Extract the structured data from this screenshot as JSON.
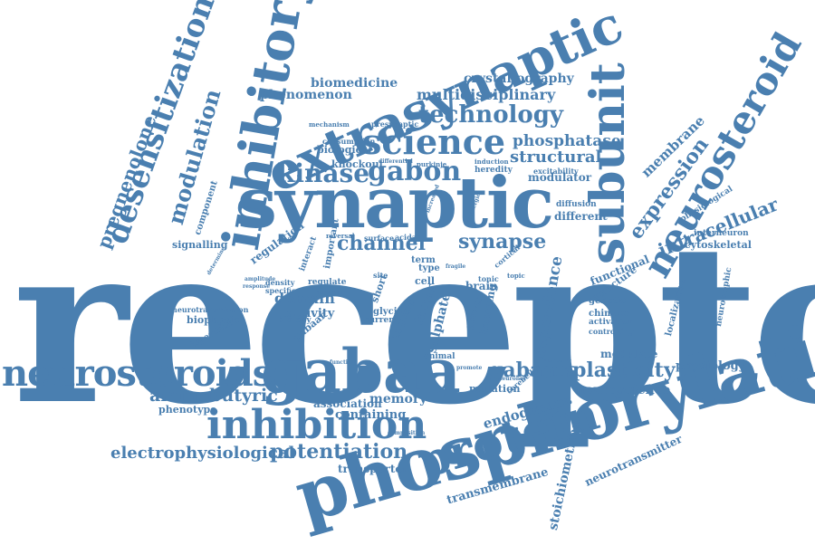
{
  "palette": {
    "word": "#4a7fb0",
    "background": "#ffffff"
  },
  "words": {
    "receptor": "receptor",
    "phosphorylation": "phosphorylation",
    "synaptic": "synaptic",
    "extrasynaptic": "extrasynaptic",
    "inhibitory": "inhibitory",
    "gabaa": "gabaa",
    "neurosteroids": "neurosteroids",
    "inhibition": "inhibition",
    "protein": "protein",
    "subunit": "subunit",
    "neurosteroid": "neurosteroid",
    "desensitization": "desensitization",
    "science": "science",
    "technology": "technology",
    "kinase": "kinase",
    "gabon": "gabon",
    "synapse": "synapse",
    "channel": "channel",
    "structural": "structural",
    "phosphatase": "phosphatase",
    "expression": "expression",
    "intracellular": "intracellular",
    "membrane": "membrane",
    "modulation": "modulation",
    "pregnenolone": "pregnenolone",
    "multidisciplinary": "multidisciplinary",
    "crystallography": "crystallography",
    "phenomenon": "phenomenon",
    "biomedicine": "biomedicine",
    "plasticity": "plasticity",
    "gabaars": "gabaars",
    "aminobutyric": "aminobutyric",
    "electrophysiological": "electrophysiological",
    "potentiation": "potentiation",
    "endogenous": "endogenous",
    "transmembrane": "transmembrane",
    "stoichiometries": "stoichiometries",
    "neurotransmitter": "neurotransmitter",
    "neuroscience": "neuroscience",
    "physiology": "physiology",
    "modulate": "modulate",
    "dependence": "dependence",
    "domain": "domain",
    "activity": "activity",
    "memory": "memory",
    "association": "association",
    "containing": "containing",
    "transporter": "transporter",
    "phenotype": "phenotype",
    "biophysic": "biophysic",
    "dependent": "dependent",
    "signalling": "signalling",
    "component": "component",
    "regulation": "regulation",
    "regulate": "regulate",
    "neuron": "neuron",
    "knockout": "knockout",
    "biological": "biological",
    "consumption": "consumption",
    "mechanism": "mechanism",
    "presynaptic": "presynaptic",
    "modulator": "modulator",
    "heredity": "heredity",
    "excitability": "excitability",
    "diffusion": "diffusion",
    "different": "different",
    "cytoskeletal": "cytoskeletal",
    "interneuron": "interneuron",
    "physiological": "physiological",
    "functional": "functional",
    "structure": "structure",
    "genetic": "genetic",
    "chimera": "chimera",
    "activation": "activation",
    "controlling": "controlling",
    "localization": "localization",
    "neurotrophic": "neurotrophic",
    "brain": "brain",
    "tonic": "tonic",
    "cell": "cell",
    "type": "type",
    "term": "term",
    "site": "site",
    "short": "short",
    "mouse": "mouse",
    "factor": "factor",
    "sulphate": "sulphate",
    "learning": "learning",
    "growth": "growth",
    "glycine": "glycine",
    "current": "current",
    "mutation": "mutation",
    "animal": "animal",
    "increase": "increase",
    "cerebellar": "cerebellar",
    "gabaar": "gabaar",
    "biology": "biology",
    "density": "density",
    "specific": "specific",
    "neurotransmission": "neurotransmission",
    "reversal": "reversal",
    "important": "important",
    "interact": "interact",
    "surface": "surface",
    "acida": "acida",
    "cortical": "cortical",
    "topic": "topic",
    "purkinje": "purkinje",
    "induction": "induction",
    "differential": "differential",
    "function": "function",
    "promote": "promote",
    "composition": "composition",
    "neuronal": "neuronal",
    "fragile": "fragile",
    "response": "response",
    "amplitude": "amplitude",
    "increased": "increased",
    "aminergic": "aminergic",
    "determine": "determine"
  }
}
